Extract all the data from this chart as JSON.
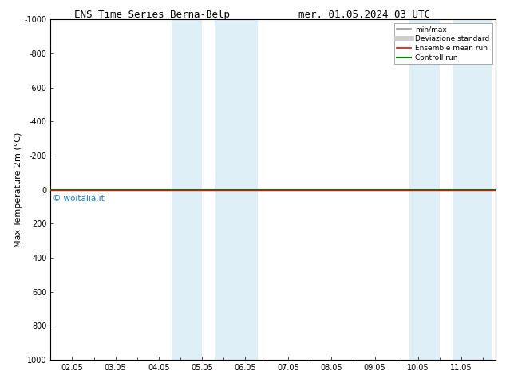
{
  "title_left": "ENS Time Series Berna-Belp",
  "title_right": "mer. 01.05.2024 03 UTC",
  "ylabel": "Max Temperature 2m (°C)",
  "ylim": [
    1000,
    -1000
  ],
  "yticks": [
    -1000,
    -800,
    -600,
    -400,
    -200,
    0,
    200,
    400,
    600,
    800,
    1000
  ],
  "ytick_labels": [
    "-1000",
    "-800",
    "-600",
    "-400",
    "-200",
    "0",
    "200",
    "400",
    "600",
    "800",
    "1000"
  ],
  "xtick_labels": [
    "02.05",
    "03.05",
    "04.05",
    "05.05",
    "06.05",
    "07.05",
    "08.05",
    "09.05",
    "10.05",
    "11.05"
  ],
  "xtick_positions": [
    1,
    2,
    3,
    4,
    5,
    6,
    7,
    8,
    9,
    10
  ],
  "xlim": [
    0.5,
    10.8
  ],
  "shaded_bands": [
    [
      3.3,
      4.0
    ],
    [
      4.3,
      5.3
    ],
    [
      8.8,
      9.5
    ],
    [
      9.8,
      10.7
    ]
  ],
  "shade_color": "#dceef7",
  "shade_alpha": 0.9,
  "line_y": 0,
  "watermark": "© woitalia.it",
  "watermark_color": "#1a7fc1",
  "legend_items": [
    {
      "label": "min/max",
      "color": "#999999",
      "lw": 1.2
    },
    {
      "label": "Deviazione standard",
      "color": "#cccccc",
      "lw": 5
    },
    {
      "label": "Ensemble mean run",
      "color": "red",
      "lw": 1.2
    },
    {
      "label": "Controll run",
      "color": "green",
      "lw": 1.5
    }
  ],
  "background_color": "white",
  "plot_bg_color": "white",
  "title_fontsize": 9,
  "axis_fontsize": 7,
  "ylabel_fontsize": 8
}
